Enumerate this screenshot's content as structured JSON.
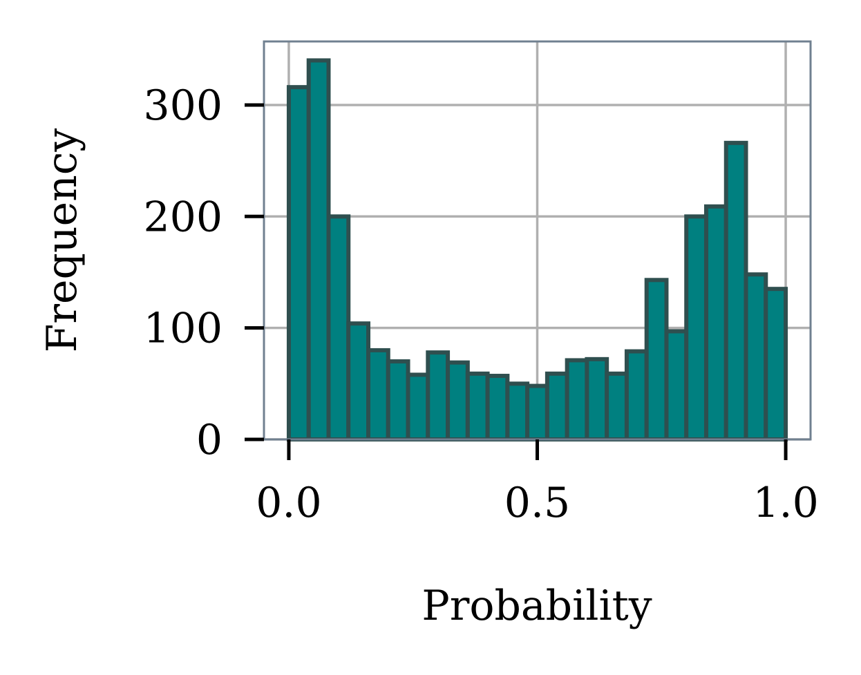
{
  "chart_data": {
    "type": "bar",
    "title": "",
    "xlabel": "Probability",
    "ylabel": "Frequency",
    "xlim": [
      -0.05,
      1.05
    ],
    "ylim": [
      0,
      357
    ],
    "x_ticks": [
      {
        "value": 0.0,
        "label": "0.0"
      },
      {
        "value": 0.5,
        "label": "0.5"
      },
      {
        "value": 1.0,
        "label": "1.0"
      }
    ],
    "y_ticks": [
      {
        "value": 0,
        "label": "0"
      },
      {
        "value": 100,
        "label": "100"
      },
      {
        "value": 200,
        "label": "200"
      },
      {
        "value": 300,
        "label": "300"
      }
    ],
    "grid": true,
    "bin_edges": [
      0.0,
      0.04,
      0.08,
      0.12,
      0.16,
      0.2,
      0.24,
      0.28,
      0.32,
      0.36,
      0.4,
      0.44,
      0.48,
      0.52,
      0.56,
      0.6,
      0.64,
      0.68,
      0.72,
      0.76,
      0.8,
      0.84,
      0.88,
      0.92,
      0.96,
      1.0
    ],
    "values": [
      316,
      340,
      200,
      104,
      80,
      70,
      58,
      78,
      69,
      59,
      57,
      50,
      48,
      59,
      71,
      72,
      59,
      79,
      143,
      97,
      200,
      209,
      266,
      148,
      135
    ],
    "colors": {
      "bar_fill": "#008080",
      "bar_edge": "#2f4f4f",
      "grid": "#b0b0b0",
      "spine": "#708090",
      "tick": "#000000"
    }
  }
}
